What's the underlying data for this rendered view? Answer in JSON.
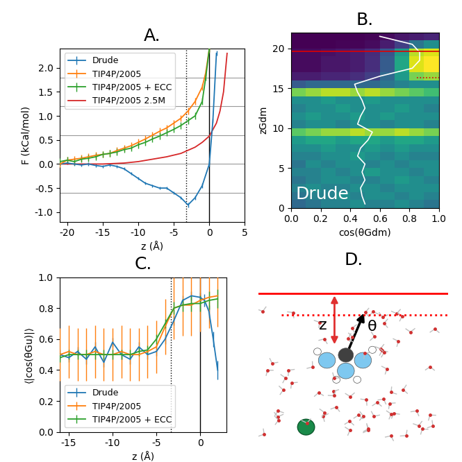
{
  "chart_data": [
    {
      "type": "line",
      "title": "A.",
      "x_label": "z (Å)",
      "y_label": "F (kCal/mol)",
      "xlim": [
        -21,
        5
      ],
      "xticks": [
        -20,
        -15,
        -10,
        -5,
        0,
        5
      ],
      "ylim": [
        -1.2,
        2.4
      ],
      "yticks": [
        -1.0,
        -0.5,
        0.0,
        0.5,
        1.0,
        1.5,
        2.0
      ],
      "legend": "upper left",
      "hlines": [
        -0.6,
        0.0,
        0.6,
        1.2,
        1.8
      ],
      "vlines": [
        {
          "x": 0,
          "line_style": "solid"
        },
        {
          "x": -3.3,
          "line_style": "dotted"
        }
      ],
      "series": [
        {
          "name": "Drude",
          "color": "#1f77b4",
          "x": [
            -21,
            -20,
            -19,
            -18,
            -17,
            -16,
            -15,
            -14,
            -13,
            -12,
            -11,
            -10,
            -9,
            -8,
            -7,
            -6,
            -5,
            -4,
            -3,
            -2,
            -1,
            0,
            0.5,
            1
          ],
          "values": [
            0.0,
            0.02,
            0.0,
            -0.02,
            0.0,
            -0.03,
            -0.05,
            -0.02,
            -0.05,
            -0.1,
            -0.2,
            -0.3,
            -0.4,
            -0.45,
            -0.5,
            -0.5,
            -0.6,
            -0.7,
            -0.85,
            -0.7,
            -0.45,
            0.0,
            0.9,
            2.3
          ],
          "errors": [
            0.03,
            0.03,
            0.03,
            0.03,
            0.03,
            0.03,
            0.03,
            0.03,
            0.03,
            0.03,
            0.03,
            0.03,
            0.03,
            0.03,
            0.03,
            0.03,
            0.03,
            0.03,
            0.05,
            0.05,
            0.05,
            0.05,
            0.05,
            0.05
          ]
        },
        {
          "name": "TIP4P/2005",
          "color": "#ff7f0e",
          "x": [
            -21,
            -20,
            -19,
            -18,
            -17,
            -16,
            -15,
            -14,
            -13,
            -12,
            -11,
            -10,
            -9,
            -8,
            -7,
            -6,
            -5,
            -4,
            -3,
            -2,
            -1,
            -0.5,
            0
          ],
          "values": [
            0.0,
            0.08,
            0.1,
            0.12,
            0.15,
            0.18,
            0.2,
            0.22,
            0.28,
            0.33,
            0.38,
            0.45,
            0.52,
            0.6,
            0.68,
            0.75,
            0.85,
            0.95,
            1.1,
            1.3,
            1.6,
            1.9,
            2.4
          ],
          "errors": [
            0.07,
            0.07,
            0.07,
            0.07,
            0.07,
            0.07,
            0.07,
            0.07,
            0.07,
            0.07,
            0.07,
            0.07,
            0.07,
            0.07,
            0.07,
            0.07,
            0.07,
            0.07,
            0.07,
            0.07,
            0.07,
            0.07,
            0.07
          ]
        },
        {
          "name": "TIP4P/2005 + ECC",
          "color": "#2ca02c",
          "x": [
            -21,
            -20,
            -19,
            -18,
            -17,
            -16,
            -15,
            -14,
            -13,
            -12,
            -11,
            -10,
            -9,
            -8,
            -7,
            -6,
            -5,
            -4,
            -3,
            -2,
            -1,
            -0.5,
            0
          ],
          "values": [
            0.05,
            0.08,
            0.05,
            0.1,
            0.12,
            0.15,
            0.2,
            0.22,
            0.25,
            0.3,
            0.33,
            0.4,
            0.45,
            0.52,
            0.58,
            0.65,
            0.72,
            0.8,
            0.9,
            1.0,
            1.3,
            1.8,
            2.4
          ],
          "errors": [
            0.07,
            0.07,
            0.07,
            0.07,
            0.07,
            0.07,
            0.07,
            0.07,
            0.07,
            0.07,
            0.07,
            0.07,
            0.07,
            0.07,
            0.07,
            0.07,
            0.07,
            0.07,
            0.07,
            0.07,
            0.07,
            0.07,
            0.07
          ]
        },
        {
          "name": "TIP4P/2005 2.5M",
          "color": "#d62728",
          "x": [
            -21,
            -18,
            -15,
            -12,
            -10,
            -8,
            -6,
            -4,
            -2,
            -1,
            0,
            1,
            1.5,
            2,
            2.5
          ],
          "values": [
            0.0,
            0.0,
            0.0,
            0.02,
            0.05,
            0.1,
            0.15,
            0.22,
            0.35,
            0.45,
            0.58,
            0.85,
            1.1,
            1.5,
            2.3
          ]
        }
      ]
    },
    {
      "type": "heatmap",
      "title": "B.",
      "x_label": "cos(θGdm)",
      "y_label": "zGdm",
      "annotation": "Drude",
      "xlim": [
        0,
        1
      ],
      "xticks": [
        0.0,
        0.2,
        0.4,
        0.6,
        0.8,
        1.0
      ],
      "ylim": [
        0,
        22
      ],
      "yticks": [
        0,
        5,
        10,
        15,
        20
      ],
      "cos_bins": [
        0.0,
        0.1,
        0.2,
        0.3,
        0.4,
        0.5,
        0.6,
        0.7,
        0.8,
        0.9,
        1.0
      ],
      "z_bins": [
        0,
        1,
        2,
        3,
        4,
        5,
        6,
        7,
        8,
        9,
        10,
        11,
        12,
        13,
        14,
        15,
        16,
        17,
        18,
        19,
        20,
        21,
        22
      ],
      "cells": [
        [
          0.35,
          0.4,
          0.45,
          0.45,
          0.5,
          0.45,
          0.45,
          0.5,
          0.45,
          0.4
        ],
        [
          0.4,
          0.45,
          0.45,
          0.5,
          0.45,
          0.5,
          0.5,
          0.45,
          0.5,
          0.45
        ],
        [
          0.45,
          0.5,
          0.45,
          0.45,
          0.5,
          0.5,
          0.45,
          0.5,
          0.5,
          0.5
        ],
        [
          0.4,
          0.45,
          0.5,
          0.5,
          0.45,
          0.45,
          0.5,
          0.55,
          0.5,
          0.45
        ],
        [
          0.45,
          0.45,
          0.5,
          0.45,
          0.5,
          0.55,
          0.5,
          0.5,
          0.45,
          0.5
        ],
        [
          0.4,
          0.5,
          0.45,
          0.5,
          0.5,
          0.45,
          0.5,
          0.45,
          0.5,
          0.5
        ],
        [
          0.45,
          0.45,
          0.5,
          0.5,
          0.55,
          0.5,
          0.45,
          0.5,
          0.45,
          0.45
        ],
        [
          0.5,
          0.5,
          0.55,
          0.5,
          0.5,
          0.55,
          0.5,
          0.55,
          0.5,
          0.5
        ],
        [
          0.55,
          0.6,
          0.6,
          0.55,
          0.6,
          0.6,
          0.55,
          0.6,
          0.6,
          0.55
        ],
        [
          0.75,
          0.8,
          0.85,
          0.85,
          0.9,
          0.85,
          0.85,
          0.9,
          0.85,
          0.8
        ],
        [
          0.45,
          0.5,
          0.5,
          0.45,
          0.5,
          0.5,
          0.45,
          0.5,
          0.5,
          0.45
        ],
        [
          0.5,
          0.55,
          0.5,
          0.5,
          0.55,
          0.5,
          0.55,
          0.5,
          0.5,
          0.5
        ],
        [
          0.45,
          0.5,
          0.5,
          0.55,
          0.5,
          0.5,
          0.5,
          0.55,
          0.5,
          0.45
        ],
        [
          0.5,
          0.5,
          0.55,
          0.5,
          0.5,
          0.55,
          0.5,
          0.5,
          0.5,
          0.5
        ],
        [
          0.8,
          0.85,
          0.9,
          0.9,
          0.85,
          0.9,
          0.85,
          0.8,
          0.75,
          0.7
        ],
        [
          0.3,
          0.35,
          0.35,
          0.35,
          0.35,
          0.35,
          0.4,
          0.45,
          0.5,
          0.5
        ],
        [
          0.1,
          0.1,
          0.12,
          0.12,
          0.15,
          0.2,
          0.35,
          0.55,
          0.8,
          0.85
        ],
        [
          0.05,
          0.05,
          0.08,
          0.08,
          0.1,
          0.15,
          0.3,
          0.6,
          0.95,
          1.0
        ],
        [
          0.05,
          0.05,
          0.08,
          0.08,
          0.1,
          0.15,
          0.3,
          0.6,
          0.95,
          1.0
        ],
        [
          0.05,
          0.05,
          0.06,
          0.08,
          0.1,
          0.14,
          0.28,
          0.55,
          0.9,
          0.95
        ],
        [
          0.02,
          0.02,
          0.02,
          0.03,
          0.03,
          0.05,
          0.1,
          0.2,
          0.4,
          0.5
        ],
        [
          0.02,
          0.02,
          0.02,
          0.02,
          0.02,
          0.03,
          0.05,
          0.08,
          0.1,
          0.12
        ]
      ],
      "profile": {
        "color": "#ffffff",
        "z": [
          0.5,
          1.5,
          2.5,
          3.5,
          4.5,
          5.5,
          6.5,
          7.5,
          8.5,
          9.5,
          10.5,
          11.5,
          12.5,
          13.5,
          14.5,
          15.5,
          16.5,
          17.5,
          18.5,
          19.5,
          20.5,
          21.5
        ],
        "values": [
          0.5,
          0.48,
          0.47,
          0.5,
          0.48,
          0.5,
          0.45,
          0.47,
          0.52,
          0.55,
          0.45,
          0.47,
          0.5,
          0.48,
          0.45,
          0.43,
          0.6,
          0.82,
          0.87,
          0.87,
          0.82,
          0.6
        ]
      },
      "hlines": [
        {
          "y": 19.6,
          "line_style": "solid",
          "xmin": 0,
          "xmax": 1,
          "color": "#e00000"
        },
        {
          "y": 16.3,
          "line_style": "dotted",
          "xmin": 0.85,
          "xmax": 1,
          "color": "#e00000"
        }
      ]
    },
    {
      "type": "line",
      "title": "C.",
      "x_label": "z (Å)",
      "y_label": "⟨|cos(θGu)|⟩",
      "xlim": [
        -16,
        3
      ],
      "xticks": [
        -15,
        -10,
        -5,
        0
      ],
      "ylim": [
        0,
        1
      ],
      "yticks": [
        0.0,
        0.2,
        0.4,
        0.6,
        0.8,
        1.0
      ],
      "legend": "lower left",
      "vlines": [
        {
          "x": 0,
          "line_style": "solid"
        },
        {
          "x": -3.3,
          "line_style": "dotted"
        }
      ],
      "series": [
        {
          "name": "Drude",
          "color": "#1f77b4",
          "x": [
            -16,
            -15,
            -14,
            -13,
            -12,
            -11,
            -10,
            -9,
            -8,
            -7,
            -6,
            -5,
            -4,
            -3,
            -2,
            -1,
            0,
            0.5,
            1,
            1.5,
            2
          ],
          "values": [
            0.5,
            0.48,
            0.52,
            0.47,
            0.55,
            0.45,
            0.58,
            0.5,
            0.47,
            0.55,
            0.5,
            0.52,
            0.6,
            0.72,
            0.85,
            0.88,
            0.87,
            0.85,
            0.78,
            0.6,
            0.4
          ],
          "errors": [
            0.03,
            0.03,
            0.03,
            0.03,
            0.03,
            0.03,
            0.03,
            0.03,
            0.03,
            0.03,
            0.03,
            0.03,
            0.03,
            0.03,
            0.03,
            0.03,
            0.03,
            0.04,
            0.04,
            0.05,
            0.06
          ]
        },
        {
          "name": "TIP4P/2005",
          "color": "#ff7f0e",
          "x": [
            -16,
            -15,
            -14,
            -13,
            -12,
            -11,
            -10,
            -9,
            -8,
            -7,
            -6,
            -5,
            -4,
            -3,
            -2,
            -1,
            0,
            1,
            2
          ],
          "values": [
            0.5,
            0.52,
            0.5,
            0.5,
            0.52,
            0.5,
            0.5,
            0.52,
            0.5,
            0.5,
            0.52,
            0.55,
            0.68,
            0.8,
            0.82,
            0.82,
            0.85,
            0.87,
            0.88
          ],
          "errors": [
            0.17,
            0.17,
            0.17,
            0.17,
            0.17,
            0.17,
            0.17,
            0.17,
            0.17,
            0.17,
            0.17,
            0.17,
            0.18,
            0.2,
            0.2,
            0.2,
            0.2,
            0.2,
            0.2
          ]
        },
        {
          "name": "TIP4P/2005 + ECC",
          "color": "#2ca02c",
          "x": [
            -16,
            -15,
            -14,
            -13,
            -12,
            -11,
            -10,
            -9,
            -8,
            -7,
            -6,
            -5,
            -4,
            -3,
            -2,
            -1,
            0,
            1,
            2
          ],
          "values": [
            0.48,
            0.5,
            0.5,
            0.5,
            0.5,
            0.5,
            0.5,
            0.5,
            0.5,
            0.52,
            0.53,
            0.6,
            0.7,
            0.8,
            0.82,
            0.83,
            0.83,
            0.85,
            0.86
          ],
          "errors": [
            0.03,
            0.03,
            0.03,
            0.03,
            0.03,
            0.03,
            0.03,
            0.03,
            0.03,
            0.03,
            0.03,
            0.03,
            0.03,
            0.04,
            0.04,
            0.05,
            0.05,
            0.06,
            0.06
          ]
        }
      ]
    }
  ],
  "diagram": {
    "title": "D.",
    "labels": {
      "distance": "z",
      "angle": "θ"
    }
  }
}
